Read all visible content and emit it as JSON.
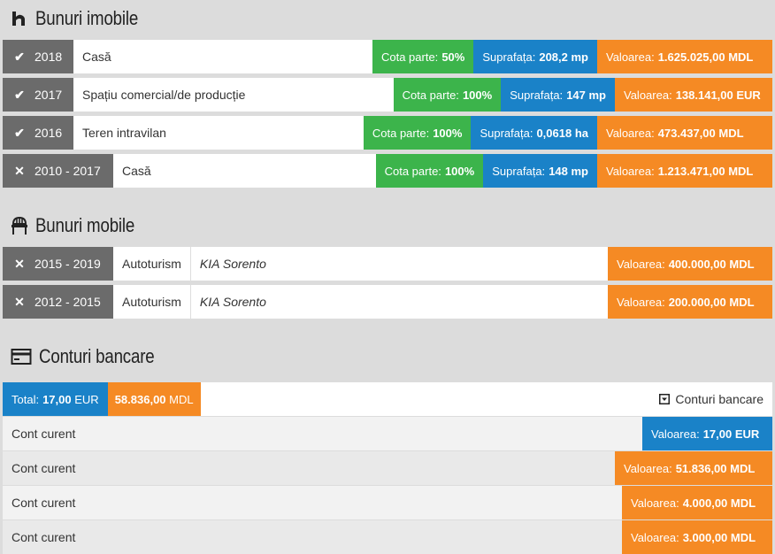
{
  "sections": {
    "imobile": {
      "title": "Bunuri imobile",
      "icon": "house-icon"
    },
    "mobile": {
      "title": "Bunuri mobile",
      "icon": "chair-icon"
    },
    "conturi": {
      "title": "Conturi bancare",
      "icon": "credit-card-icon"
    }
  },
  "imobile": [
    {
      "status": "check",
      "year": "2018",
      "type": "Casă",
      "cota_label": "Cota parte:",
      "cota": "50%",
      "supr_label": "Suprafața:",
      "supr": "208,2 mp",
      "val_label": "Valoarea:",
      "val": "1.625.025,00 MDL"
    },
    {
      "status": "check",
      "year": "2017",
      "type": "Spațiu comercial/de producție",
      "cota_label": "Cota parte:",
      "cota": "100%",
      "supr_label": "Suprafața:",
      "supr": "147 mp",
      "val_label": "Valoarea:",
      "val": "138.141,00 EUR"
    },
    {
      "status": "check",
      "year": "2016",
      "type": "Teren intravilan",
      "cota_label": "Cota parte:",
      "cota": "100%",
      "supr_label": "Suprafața:",
      "supr": "0,0618 ha",
      "val_label": "Valoarea:",
      "val": "473.437,00 MDL"
    },
    {
      "status": "cross",
      "year": "2010 - 2017",
      "type": "Casă",
      "cota_label": "Cota parte:",
      "cota": "100%",
      "supr_label": "Suprafața:",
      "supr": "148 mp",
      "val_label": "Valoarea:",
      "val": "1.213.471,00 MDL"
    }
  ],
  "mobile": [
    {
      "status": "cross",
      "year": "2015 - 2019",
      "type": "Autoturism",
      "model": "KIA Sorento",
      "val_label": "Valoarea:",
      "val": "400.000,00 MDL"
    },
    {
      "status": "cross",
      "year": "2012 - 2015",
      "type": "Autoturism",
      "model": "KIA Sorento",
      "val_label": "Valoarea:",
      "val": "200.000,00 MDL"
    }
  ],
  "conturi": {
    "total_label": "Total:",
    "total_eur": "17,00",
    "total_eur_unit": "EUR",
    "total_mdl": "58.836,00",
    "total_mdl_unit": "MDL",
    "dropdown_label": "Conturi bancare",
    "accounts": [
      {
        "label": "Cont curent",
        "val_label": "Valoarea:",
        "val": "17,00 EUR",
        "color": "#1a82c8"
      },
      {
        "label": "Cont curent",
        "val_label": "Valoarea:",
        "val": "51.836,00 MDL",
        "color": "#f58a24"
      },
      {
        "label": "Cont curent",
        "val_label": "Valoarea:",
        "val": "4.000,00 MDL",
        "color": "#f58a24"
      },
      {
        "label": "Cont curent",
        "val_label": "Valoarea:",
        "val": "3.000,00 MDL",
        "color": "#f58a24"
      }
    ]
  },
  "colors": {
    "green": "#3cb44b",
    "blue": "#1a82c8",
    "orange": "#f58a24",
    "gray": "#6b6b6b"
  }
}
